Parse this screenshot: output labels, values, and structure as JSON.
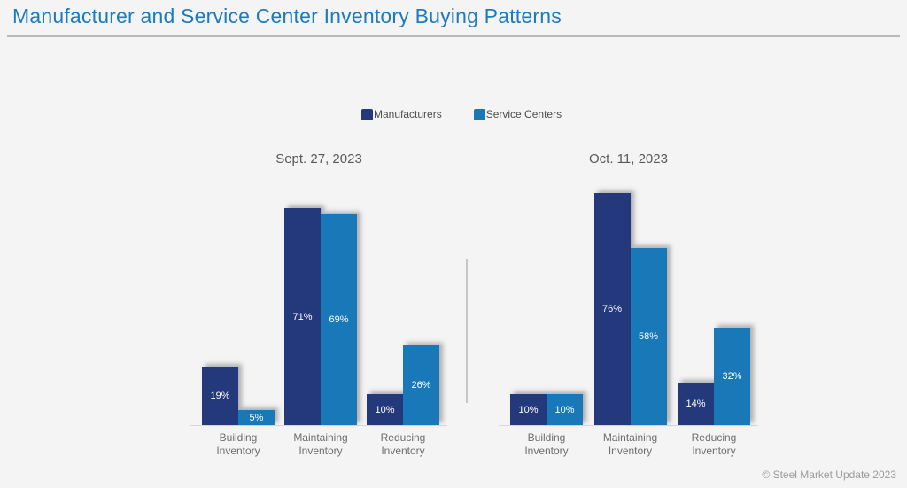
{
  "page": {
    "title": "Manufacturer and Service Center Inventory Buying Patterns",
    "footer": "© Steel Market Update 2023",
    "background_color": "#f4f4f4",
    "title_color": "#1e7abf"
  },
  "legend": {
    "items": [
      {
        "label": "Manufacturers",
        "color": "#24387c"
      },
      {
        "label": "Service Centers",
        "color": "#1878b8"
      }
    ]
  },
  "chart_data": {
    "type": "bar",
    "categories": [
      "Building Inventory",
      "Maintaining Inventory",
      "Reducing Inventory"
    ],
    "value_suffix": "%",
    "ylim": [
      0,
      80
    ],
    "grid": false,
    "legend_position": "top-center",
    "bar_colors": {
      "manufacturers": "#24387c",
      "service_centers": "#1878b8"
    },
    "charts": [
      {
        "title": "Sept. 27, 2023",
        "series": [
          {
            "name": "Manufacturers",
            "color": "#24387c",
            "values": [
              19,
              71,
              10
            ]
          },
          {
            "name": "Service Centers",
            "color": "#1878b8",
            "values": [
              5,
              69,
              26
            ]
          }
        ]
      },
      {
        "title": "Oct. 11, 2023",
        "series": [
          {
            "name": "Manufacturers",
            "color": "#24387c",
            "values": [
              10,
              76,
              14
            ]
          },
          {
            "name": "Service Centers",
            "color": "#1878b8",
            "values": [
              10,
              58,
              32
            ]
          }
        ]
      }
    ]
  }
}
